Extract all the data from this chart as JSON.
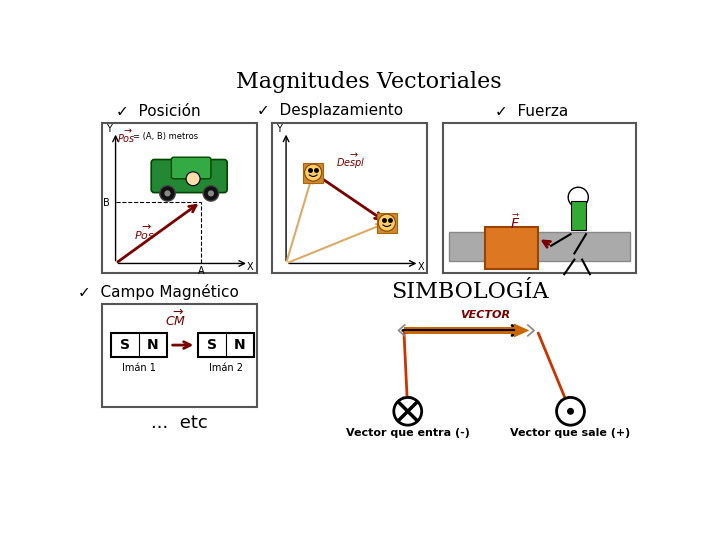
{
  "title": "Magnitudes Vectoriales",
  "title_fontsize": 16,
  "bg_color": "#ffffff",
  "label_posicion": "✓  Posición",
  "label_desplazamiento": "✓  Desplazamiento",
  "label_fuerza": "✓  Fuerza",
  "label_campo": "✓  Campo Magnético",
  "label_simbologia": "SIMBOLOGÍA",
  "label_etc": "...  etc",
  "label_vector_entra": "Vector que entra (-)",
  "label_vector_sale": "Vector que sale (+)",
  "label_vector": "VECTOR",
  "arrow_color": "#cc3300",
  "dark_red": "#6b0000",
  "pos_vec_color": "#7b0000",
  "orange_face": "#cc8833",
  "box_border": "#555555",
  "magnet_arrow": "#7b0000",
  "vec_orange": "#cc6600"
}
